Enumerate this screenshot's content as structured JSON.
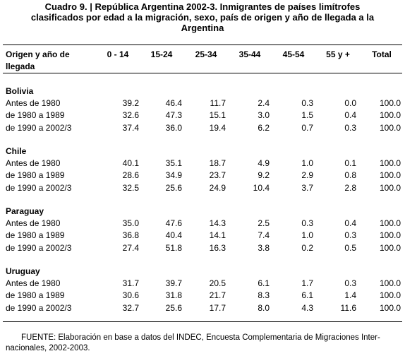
{
  "header": {
    "title_lines": [
      "Cuadro 9. | República Argentina 2002-3. Inmigrantes de países limítrofes",
      "clasificados por edad a la migración, sexo, país de origen y año de llegada a la",
      "Argentina"
    ]
  },
  "table": {
    "first_header_lines": [
      "Origen y año de",
      "llegada"
    ],
    "columns": [
      "0 - 14",
      "15-24",
      "25-34",
      "35-44",
      "45-54",
      "55 y +",
      "Total"
    ],
    "groups": [
      {
        "name": "Bolivia",
        "rows": [
          {
            "label": "Antes de 1980",
            "cells": [
              "39.2",
              "46.4",
              "11.7",
              "2.4",
              "0.3",
              "0.0",
              "100.0"
            ]
          },
          {
            "label": "de 1980 a 1989",
            "cells": [
              "32.6",
              "47.3",
              "15.1",
              "3.0",
              "1.5",
              "0.4",
              "100.0"
            ]
          },
          {
            "label": "de 1990 a 2002/3",
            "cells": [
              "37.4",
              "36.0",
              "19.4",
              "6.2",
              "0.7",
              "0.3",
              "100.0"
            ]
          }
        ]
      },
      {
        "name": "Chile",
        "rows": [
          {
            "label": "Antes de 1980",
            "cells": [
              "40.1",
              "35.1",
              "18.7",
              "4.9",
              "1.0",
              "0.1",
              "100.0"
            ]
          },
          {
            "label": "de 1980 a 1989",
            "cells": [
              "28.6",
              "34.9",
              "23.7",
              "9.2",
              "2.9",
              "0.8",
              "100.0"
            ]
          },
          {
            "label": "de 1990 a 2002/3",
            "cells": [
              "32.5",
              "25.6",
              "24.9",
              "10.4",
              "3.7",
              "2.8",
              "100.0"
            ]
          }
        ]
      },
      {
        "name": "Paraguay",
        "rows": [
          {
            "label": "Antes de 1980",
            "cells": [
              "35.0",
              "47.6",
              "14.3",
              "2.5",
              "0.3",
              "0.4",
              "100.0"
            ]
          },
          {
            "label": "de 1980 a 1989",
            "cells": [
              "36.8",
              "40.4",
              "14.1",
              "7.4",
              "1.0",
              "0.3",
              "100.0"
            ]
          },
          {
            "label": "de 1990 a 2002/3",
            "cells": [
              "27.4",
              "51.8",
              "16.3",
              "3.8",
              "0.2",
              "0.5",
              "100.0"
            ]
          }
        ]
      },
      {
        "name": "Uruguay",
        "rows": [
          {
            "label": "Antes de 1980",
            "cells": [
              "31.7",
              "39.7",
              "20.5",
              "6.1",
              "1.7",
              "0.3",
              "100.0"
            ]
          },
          {
            "label": "de 1980 a 1989",
            "cells": [
              "30.6",
              "31.8",
              "21.7",
              "8.3",
              "6.1",
              "1.4",
              "100.0"
            ]
          },
          {
            "label": "de 1990 a 2002/3",
            "cells": [
              "32.7",
              "25.6",
              "17.7",
              "8.0",
              "4.3",
              "11.6",
              "100.0"
            ]
          }
        ]
      }
    ]
  },
  "footer": {
    "lines": [
      "FUENTE: Elaboración en base a datos del INDEC, Encuesta Complementaria de Migraciones Inter-",
      "nacionales, 2002-2003."
    ]
  }
}
